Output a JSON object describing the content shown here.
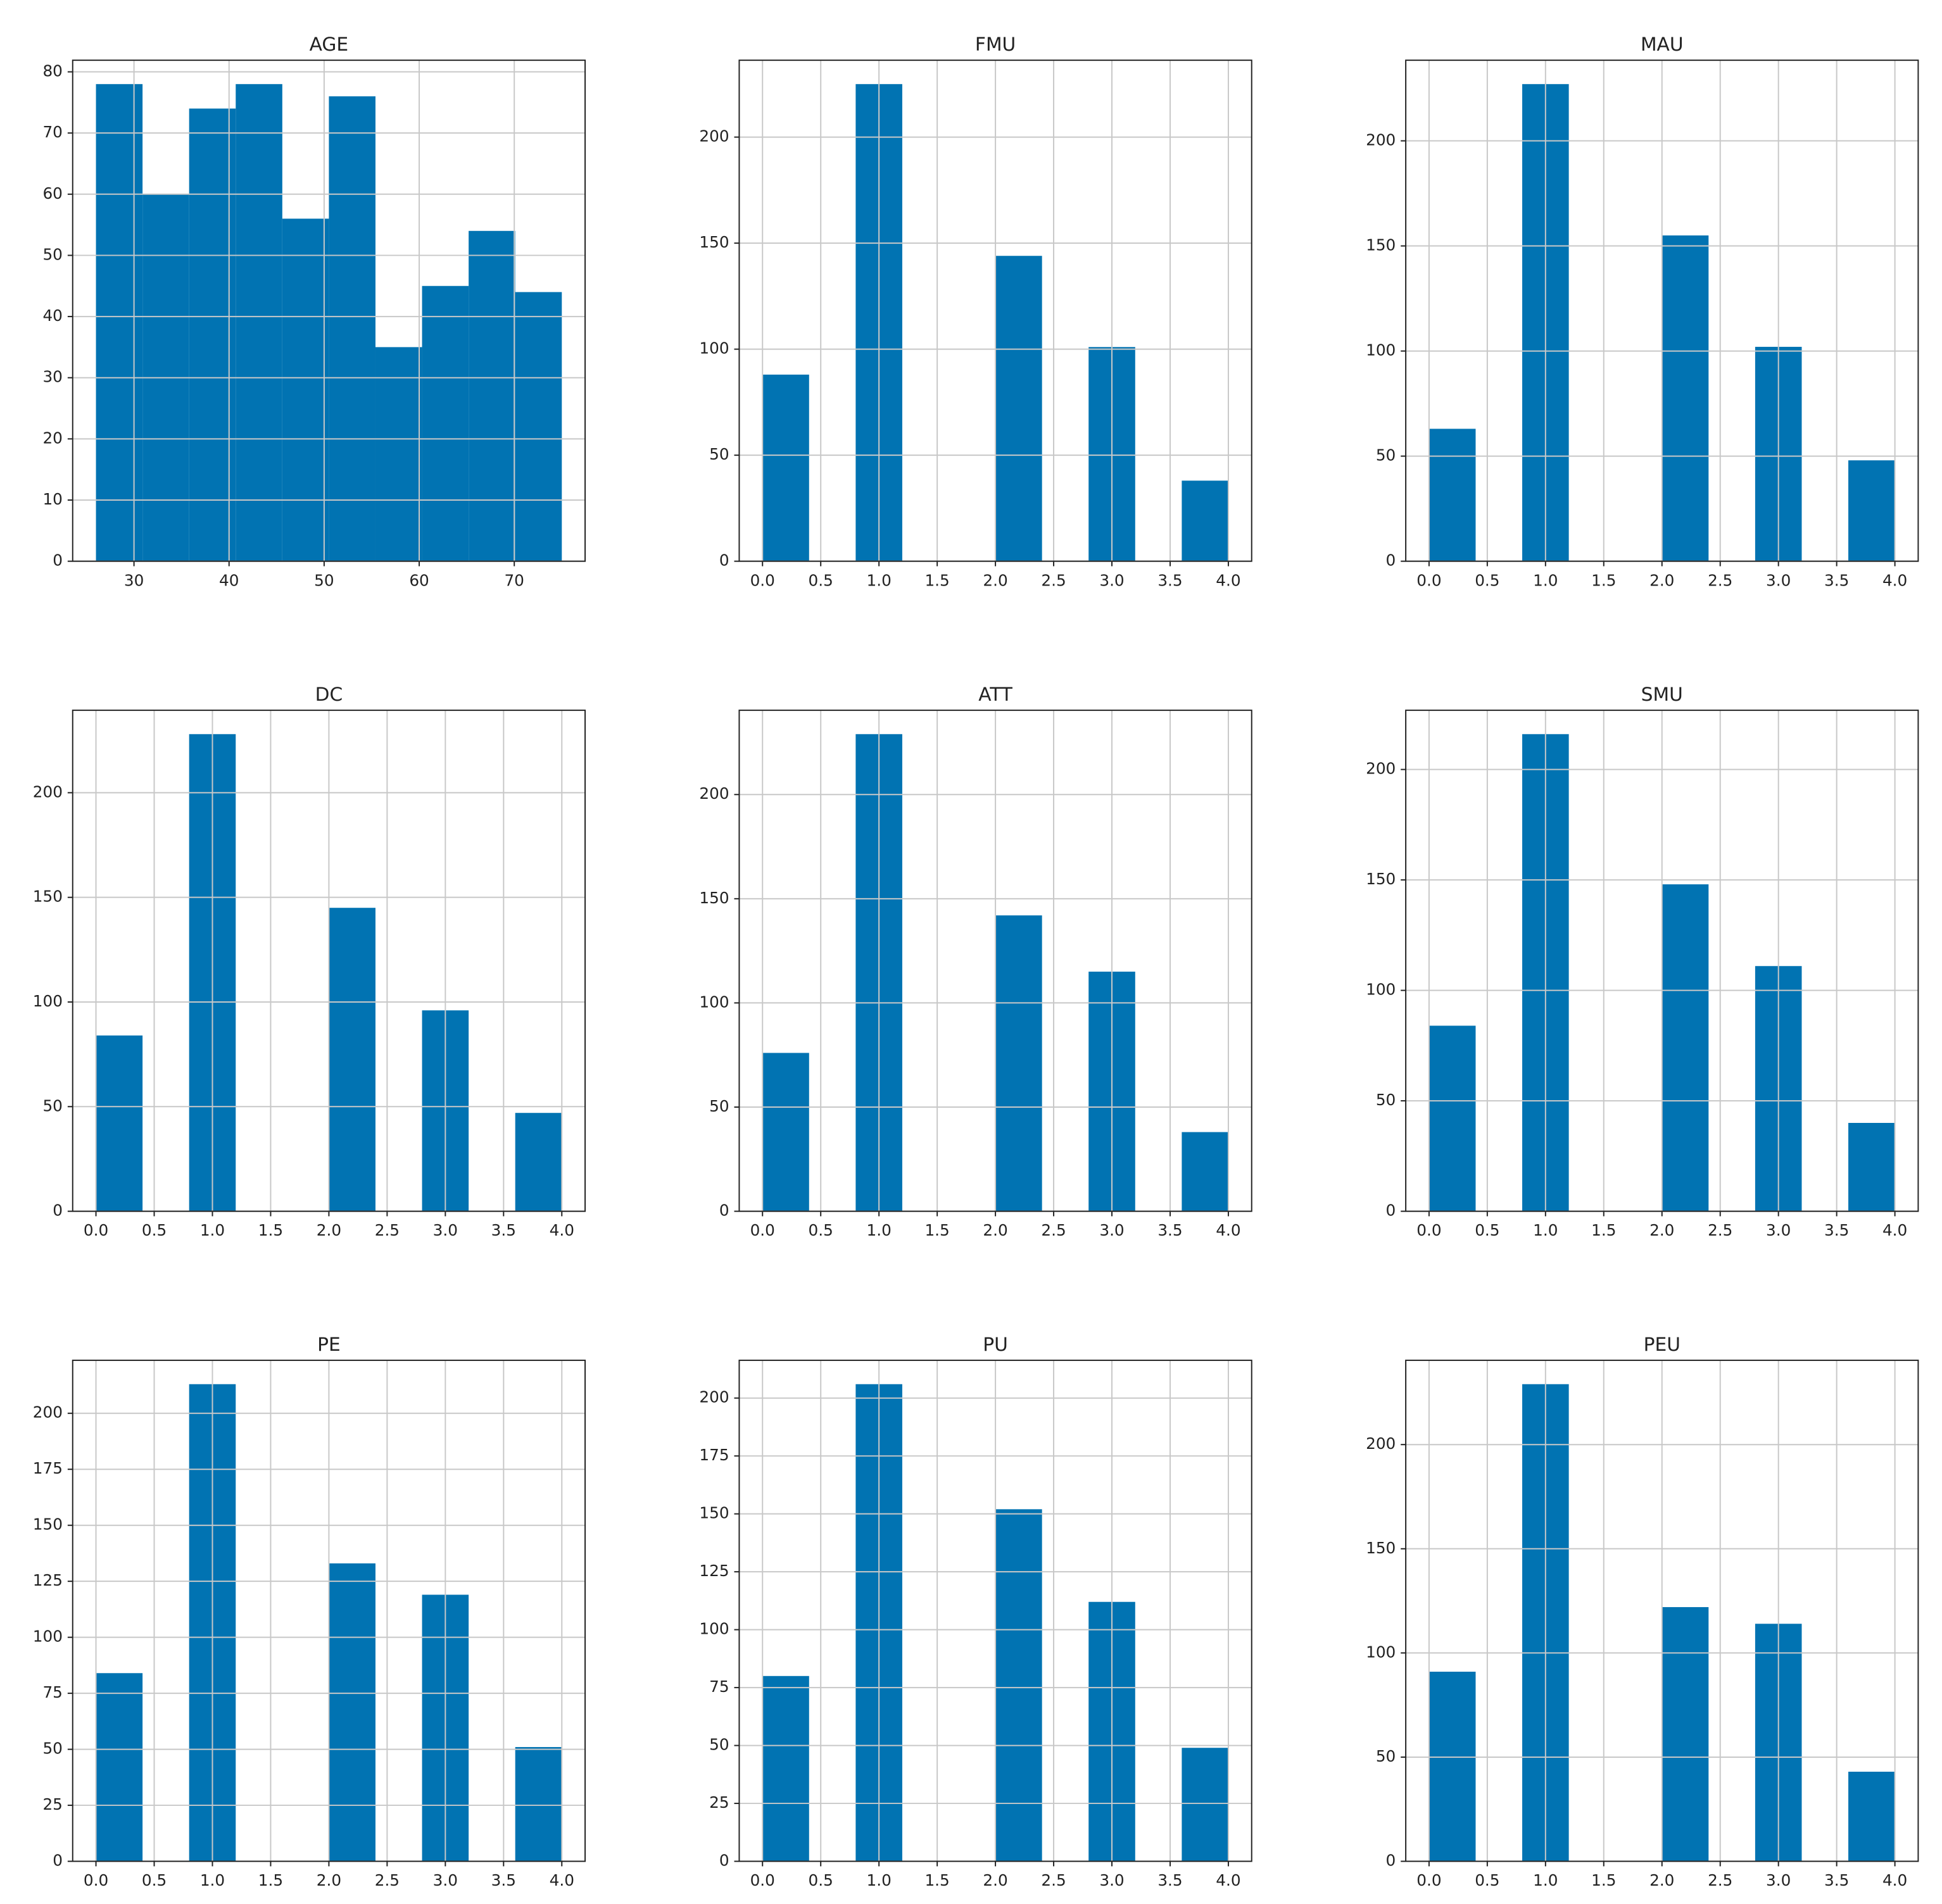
{
  "chart_data": [
    {
      "type": "histogram",
      "title": "AGE",
      "bins": [
        26,
        30.9,
        35.8,
        40.7,
        45.6,
        50.5,
        55.4,
        60.3,
        65.2,
        70.1,
        75
      ],
      "counts": [
        78,
        60,
        74,
        78,
        56,
        76,
        35,
        45,
        54,
        44
      ],
      "color": "#0173b2",
      "xlim": [
        23.55,
        77.45
      ],
      "xticks": [
        30,
        40,
        50,
        60,
        70
      ],
      "ylim": [
        0,
        81.9
      ],
      "yticks": [
        0,
        10,
        20,
        30,
        40,
        50,
        60,
        70,
        80
      ],
      "grid": true
    },
    {
      "type": "histogram",
      "title": "FMU",
      "bins": [
        0,
        0.4,
        0.8,
        1.2,
        1.6,
        2,
        2.4,
        2.8,
        3.2,
        3.6,
        4
      ],
      "counts": [
        88,
        0,
        225,
        0,
        0,
        144,
        0,
        101,
        0,
        38
      ],
      "color": "#0173b2",
      "xlim": [
        -0.2,
        4.2
      ],
      "xticks": [
        {
          "value": 0,
          "label": "0.0"
        },
        0.5,
        {
          "value": 1,
          "label": "1.0"
        },
        1.5,
        {
          "value": 2,
          "label": "2.0"
        },
        2.5,
        {
          "value": 3,
          "label": "3.0"
        },
        3.5,
        {
          "value": 4,
          "label": "4.0"
        }
      ],
      "ylim": [
        0,
        236.25
      ],
      "yticks": [
        0,
        50,
        100,
        150,
        200
      ],
      "grid": true
    },
    {
      "type": "histogram",
      "title": "MAU",
      "bins": [
        0,
        0.4,
        0.8,
        1.2,
        1.6,
        2,
        2.4,
        2.8,
        3.2,
        3.6,
        4
      ],
      "counts": [
        63,
        0,
        227,
        0,
        0,
        155,
        0,
        102,
        0,
        48
      ],
      "color": "#0173b2",
      "xlim": [
        -0.2,
        4.2
      ],
      "xticks": [
        {
          "value": 0,
          "label": "0.0"
        },
        0.5,
        {
          "value": 1,
          "label": "1.0"
        },
        1.5,
        {
          "value": 2,
          "label": "2.0"
        },
        2.5,
        {
          "value": 3,
          "label": "3.0"
        },
        3.5,
        {
          "value": 4,
          "label": "4.0"
        }
      ],
      "ylim": [
        0,
        238.35
      ],
      "yticks": [
        0,
        50,
        100,
        150,
        200
      ],
      "grid": true
    },
    {
      "type": "histogram",
      "title": "DC",
      "bins": [
        0,
        0.4,
        0.8,
        1.2,
        1.6,
        2,
        2.4,
        2.8,
        3.2,
        3.6,
        4
      ],
      "counts": [
        84,
        0,
        228,
        0,
        0,
        145,
        0,
        96,
        0,
        47
      ],
      "color": "#0173b2",
      "xlim": [
        -0.2,
        4.2
      ],
      "xticks": [
        {
          "value": 0,
          "label": "0.0"
        },
        0.5,
        {
          "value": 1,
          "label": "1.0"
        },
        1.5,
        {
          "value": 2,
          "label": "2.0"
        },
        2.5,
        {
          "value": 3,
          "label": "3.0"
        },
        3.5,
        {
          "value": 4,
          "label": "4.0"
        }
      ],
      "ylim": [
        0,
        239.4
      ],
      "yticks": [
        0,
        50,
        100,
        150,
        200
      ],
      "grid": true
    },
    {
      "type": "histogram",
      "title": "ATT",
      "bins": [
        0,
        0.4,
        0.8,
        1.2,
        1.6,
        2,
        2.4,
        2.8,
        3.2,
        3.6,
        4
      ],
      "counts": [
        76,
        0,
        229,
        0,
        0,
        142,
        0,
        115,
        0,
        38
      ],
      "color": "#0173b2",
      "xlim": [
        -0.2,
        4.2
      ],
      "xticks": [
        {
          "value": 0,
          "label": "0.0"
        },
        0.5,
        {
          "value": 1,
          "label": "1.0"
        },
        1.5,
        {
          "value": 2,
          "label": "2.0"
        },
        2.5,
        {
          "value": 3,
          "label": "3.0"
        },
        3.5,
        {
          "value": 4,
          "label": "4.0"
        }
      ],
      "ylim": [
        0,
        240.45
      ],
      "yticks": [
        0,
        50,
        100,
        150,
        200
      ],
      "grid": true
    },
    {
      "type": "histogram",
      "title": "SMU",
      "bins": [
        0,
        0.4,
        0.8,
        1.2,
        1.6,
        2,
        2.4,
        2.8,
        3.2,
        3.6,
        4
      ],
      "counts": [
        84,
        0,
        216,
        0,
        0,
        148,
        0,
        111,
        0,
        40
      ],
      "color": "#0173b2",
      "xlim": [
        -0.2,
        4.2
      ],
      "xticks": [
        {
          "value": 0,
          "label": "0.0"
        },
        0.5,
        {
          "value": 1,
          "label": "1.0"
        },
        1.5,
        {
          "value": 2,
          "label": "2.0"
        },
        2.5,
        {
          "value": 3,
          "label": "3.0"
        },
        3.5,
        {
          "value": 4,
          "label": "4.0"
        }
      ],
      "ylim": [
        0,
        226.8
      ],
      "yticks": [
        0,
        50,
        100,
        150,
        200
      ],
      "grid": true
    },
    {
      "type": "histogram",
      "title": "PE",
      "bins": [
        0,
        0.4,
        0.8,
        1.2,
        1.6,
        2,
        2.4,
        2.8,
        3.2,
        3.6,
        4
      ],
      "counts": [
        84,
        0,
        213,
        0,
        0,
        133,
        0,
        119,
        0,
        51
      ],
      "color": "#0173b2",
      "xlim": [
        -0.2,
        4.2
      ],
      "xticks": [
        {
          "value": 0,
          "label": "0.0"
        },
        0.5,
        {
          "value": 1,
          "label": "1.0"
        },
        1.5,
        {
          "value": 2,
          "label": "2.0"
        },
        2.5,
        {
          "value": 3,
          "label": "3.0"
        },
        3.5,
        {
          "value": 4,
          "label": "4.0"
        }
      ],
      "ylim": [
        0,
        223.65
      ],
      "yticks": [
        0,
        25,
        50,
        75,
        100,
        125,
        150,
        175,
        200
      ],
      "grid": true
    },
    {
      "type": "histogram",
      "title": "PU",
      "bins": [
        0,
        0.4,
        0.8,
        1.2,
        1.6,
        2,
        2.4,
        2.8,
        3.2,
        3.6,
        4
      ],
      "counts": [
        80,
        0,
        206,
        0,
        0,
        152,
        0,
        112,
        0,
        49
      ],
      "color": "#0173b2",
      "xlim": [
        -0.2,
        4.2
      ],
      "xticks": [
        {
          "value": 0,
          "label": "0.0"
        },
        0.5,
        {
          "value": 1,
          "label": "1.0"
        },
        1.5,
        {
          "value": 2,
          "label": "2.0"
        },
        2.5,
        {
          "value": 3,
          "label": "3.0"
        },
        3.5,
        {
          "value": 4,
          "label": "4.0"
        }
      ],
      "ylim": [
        0,
        216.3
      ],
      "yticks": [
        0,
        25,
        50,
        75,
        100,
        125,
        150,
        175,
        200
      ],
      "grid": true
    },
    {
      "type": "histogram",
      "title": "PEU",
      "bins": [
        0,
        0.4,
        0.8,
        1.2,
        1.6,
        2,
        2.4,
        2.8,
        3.2,
        3.6,
        4
      ],
      "counts": [
        91,
        0,
        229,
        0,
        0,
        122,
        0,
        114,
        0,
        43
      ],
      "color": "#0173b2",
      "xlim": [
        -0.2,
        4.2
      ],
      "xticks": [
        {
          "value": 0,
          "label": "0.0"
        },
        0.5,
        {
          "value": 1,
          "label": "1.0"
        },
        1.5,
        {
          "value": 2,
          "label": "2.0"
        },
        2.5,
        {
          "value": 3,
          "label": "3.0"
        },
        3.5,
        {
          "value": 4,
          "label": "4.0"
        }
      ],
      "ylim": [
        0,
        240.45
      ],
      "yticks": [
        0,
        50,
        100,
        150,
        200
      ],
      "grid": true
    }
  ]
}
